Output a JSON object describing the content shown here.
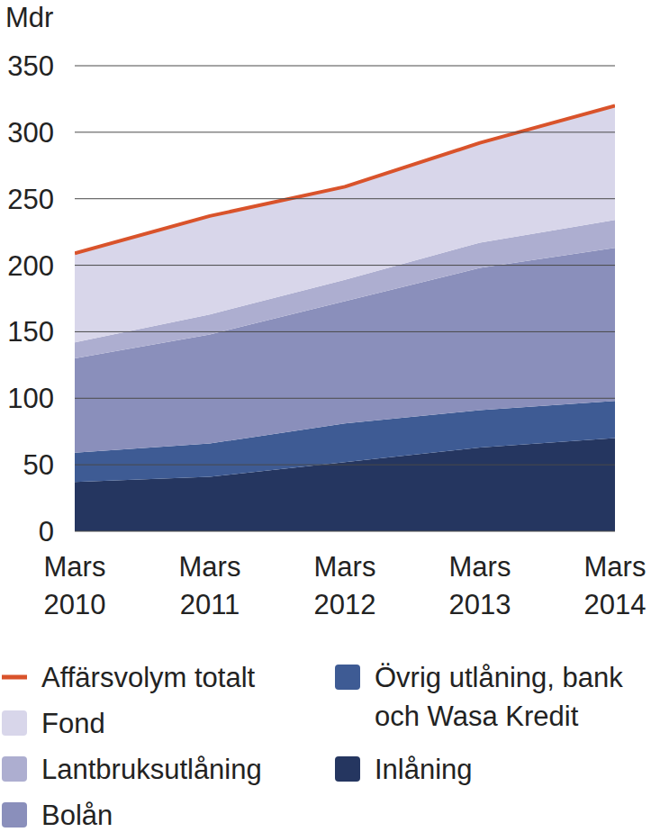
{
  "chart_data": {
    "type": "area",
    "stacked": true,
    "grid": true,
    "y_label": "Mdr",
    "categories": [
      "Mars 2010",
      "Mars 2011",
      "Mars 2012",
      "Mars 2013",
      "Mars 2014"
    ],
    "ylim": [
      0,
      350
    ],
    "yticks": [
      0,
      50,
      100,
      150,
      200,
      250,
      300,
      350
    ],
    "series": [
      {
        "name": "Affärsvolym totalt",
        "type": "line",
        "color": "#d9532b",
        "values": [
          209,
          237,
          259,
          292,
          320
        ]
      },
      {
        "name": "Fond",
        "type": "area",
        "color": "#d8d6ea",
        "values": [
          67,
          74,
          70,
          75,
          86
        ]
      },
      {
        "name": "Lantbruksutlåning",
        "type": "area",
        "color": "#adaed0",
        "values": [
          12,
          15,
          16,
          19,
          21
        ]
      },
      {
        "name": "Bolån",
        "type": "area",
        "color": "#8a8fbb",
        "values": [
          71,
          82,
          92,
          107,
          115
        ]
      },
      {
        "name": "Övrig utlåning, bank och Wasa Kredit",
        "type": "area",
        "color": "#3e5b94",
        "values": [
          22,
          25,
          29,
          28,
          28
        ]
      },
      {
        "name": "Inlåning",
        "type": "area",
        "color": "#253660",
        "values": [
          37,
          41,
          52,
          63,
          70
        ]
      }
    ]
  }
}
